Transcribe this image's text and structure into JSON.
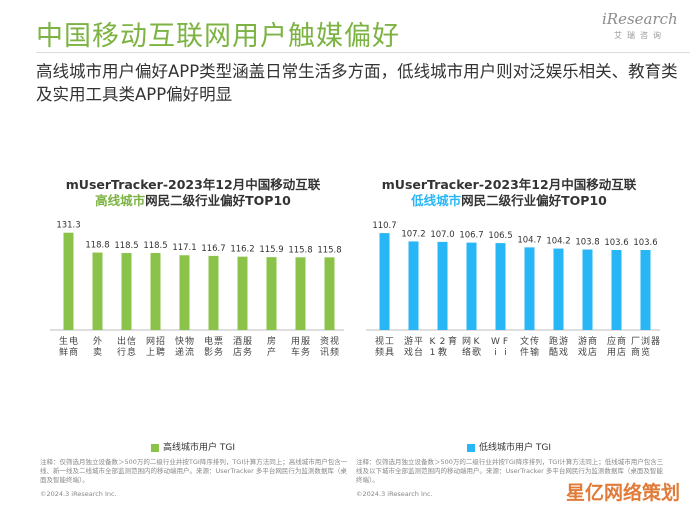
{
  "page": {
    "title": "中国移动互联网用户触媒偏好",
    "subtitle": "高线城市用户偏好APP类型涵盖日常生活多方面，低线城市用户则对泛娱乐相关、教育类及实用工具类APP偏好明显",
    "logo_mark": "iResearch",
    "logo_sub": "艾瑞咨询",
    "watermark": "星亿网络策划"
  },
  "colors": {
    "green": "#8bc34a",
    "blue": "#29b6f6",
    "title_green": "#7cb342"
  },
  "chart_data": [
    {
      "type": "bar",
      "title_line1": "mUserTracker-2023年12月中国移动互联",
      "title_line2_highlight": "高线城市",
      "title_line2_rest": "网民二级行业偏好TOP10",
      "categories": [
        "生鲜电商",
        "外卖",
        "出行信息",
        "网上招聘",
        "快递物流",
        "电影票务",
        "酒店服务",
        "房产",
        "用车服务",
        "资讯视频"
      ],
      "values": [
        131.3,
        118.8,
        118.5,
        118.5,
        117.1,
        116.7,
        116.2,
        115.9,
        115.8,
        115.8
      ],
      "series_name": "高线城市用户 TGI",
      "notes": "注释：仅筛选月独立设备数＞500万的二级行业并按TGI降序排列，TGI计算方法同上；高线城市用户包含一线、新一线及二线城市全部监测范围内的移动端用户。来源：UserTracker 多平台网民行为监测数据库（桌面及智能终端）。",
      "copyright": "©2024.3 iResearch Inc."
    },
    {
      "type": "bar",
      "title_line1": "mUserTracker-2023年12月中国移动互联",
      "title_line2_highlight": "低线城市",
      "title_line2_rest": "网民二级行业偏好TOP10",
      "categories": [
        "视频工具",
        "游戏平台",
        "K12教育",
        "网络K歌",
        "WiFi",
        "文件传输",
        "跑酷游戏",
        "游戏商店",
        "应用商店",
        "厂商浏览器"
      ],
      "values": [
        110.7,
        107.2,
        107.0,
        106.7,
        106.5,
        104.7,
        104.2,
        103.8,
        103.6,
        103.6
      ],
      "series_name": "低线城市用户 TGI",
      "notes": "注释：仅筛选月独立设备数＞500万的二级行业并按TGI降序排列，TGI计算方法同上；低线城市用户包含三线及以下城市全部监测范围内的移动端用户。来源：UserTracker 多平台网民行为监测数据库（桌面及智能终端）。",
      "copyright": "©2024.3 iResearch Inc."
    }
  ]
}
